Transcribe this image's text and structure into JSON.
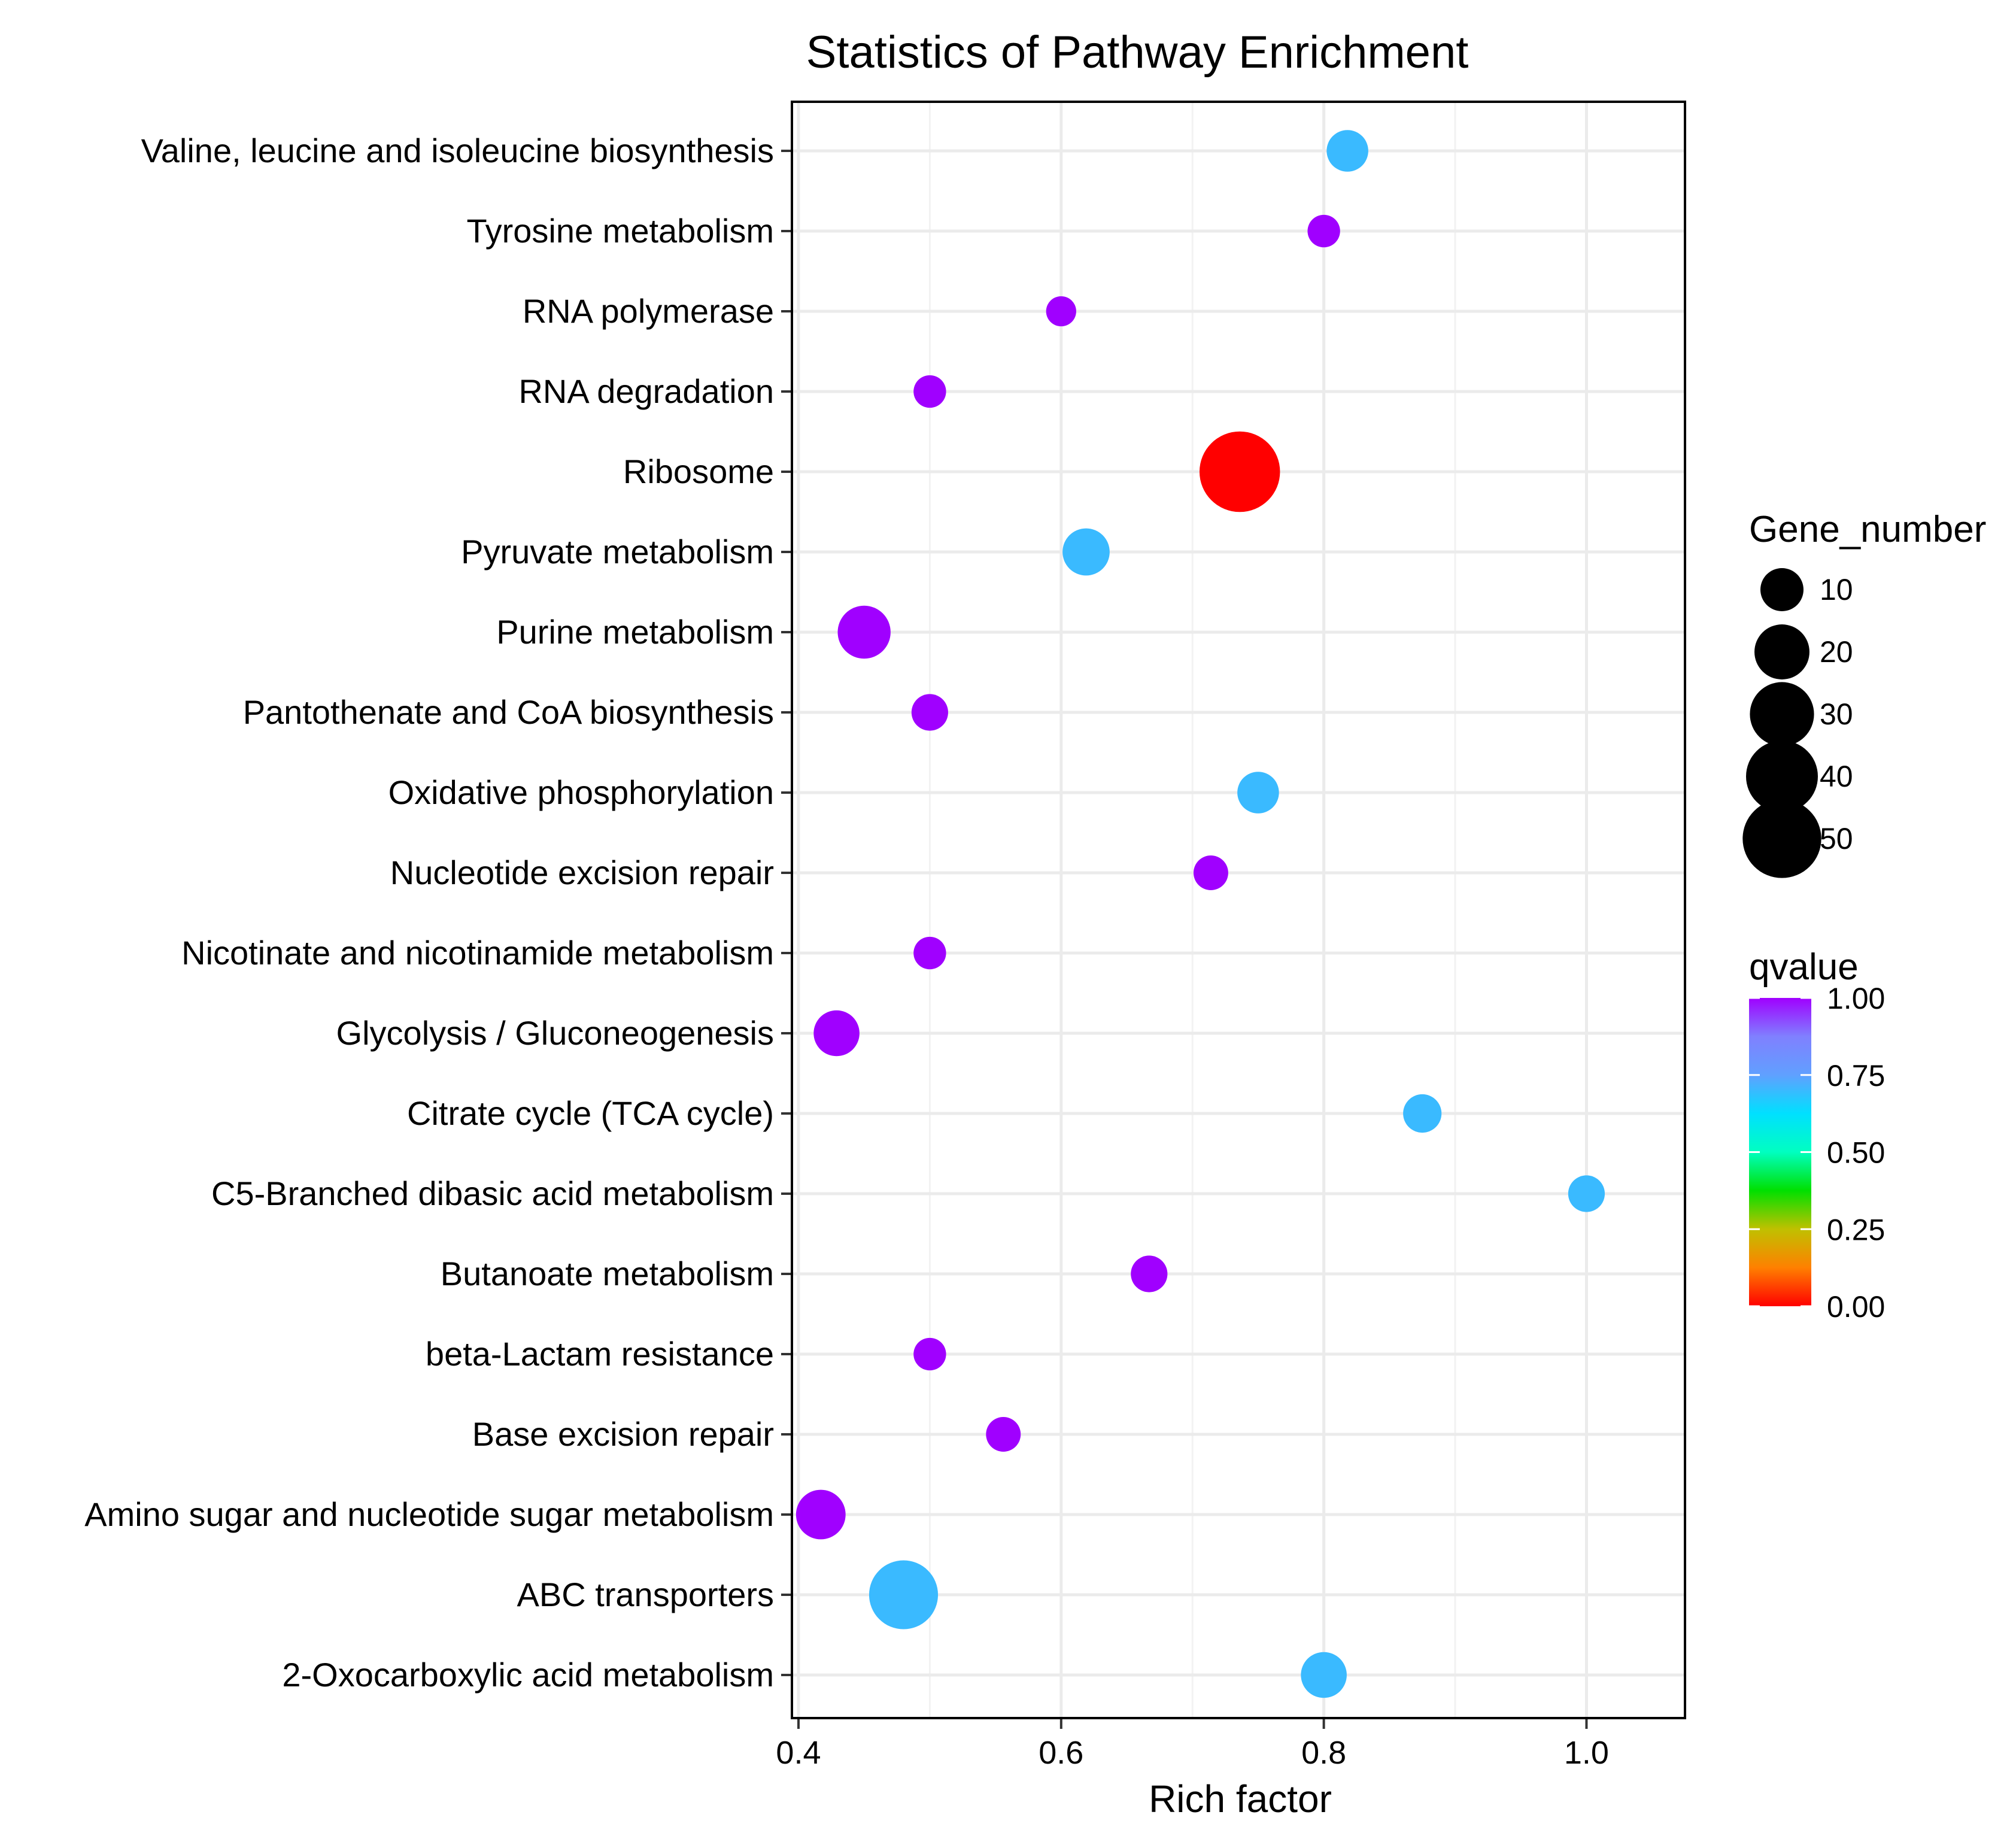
{
  "chart_data": {
    "type": "scatter",
    "title": "Statistics of Pathway Enrichment",
    "xlabel": "Rich factor",
    "ylabel": "",
    "xlim": [
      0.395,
      1.075
    ],
    "x_ticks": [
      0.4,
      0.6,
      0.8,
      1.0
    ],
    "x_tick_labels": [
      "0.4",
      "0.6",
      "0.8",
      "1.0"
    ],
    "grid": true,
    "categories": [
      "Valine, leucine and isoleucine biosynthesis",
      "Tyrosine metabolism",
      "RNA polymerase",
      "RNA degradation",
      "Ribosome",
      "Pyruvate metabolism",
      "Purine metabolism",
      "Pantothenate and CoA biosynthesis",
      "Oxidative phosphorylation",
      "Nucleotide excision repair",
      "Nicotinate and nicotinamide metabolism",
      "Glycolysis / Gluconeogenesis",
      "Citrate cycle (TCA cycle)",
      "C5-Branched dibasic acid metabolism",
      "Butanoate metabolism",
      "beta-Lactam resistance",
      "Base excision repair",
      "Amino sugar and nucleotide sugar metabolism",
      "ABC transporters",
      "2-Oxocarboxylic acid metabolism"
    ],
    "points": [
      {
        "category": "Valine, leucine and isoleucine biosynthesis",
        "rich_factor": 0.818,
        "gene_number": 9,
        "qvalue": 0.7
      },
      {
        "category": "Tyrosine metabolism",
        "rich_factor": 0.8,
        "gene_number": 4,
        "qvalue": 1.0
      },
      {
        "category": "RNA polymerase",
        "rich_factor": 0.6,
        "gene_number": 3,
        "qvalue": 1.0
      },
      {
        "category": "RNA degradation",
        "rich_factor": 0.5,
        "gene_number": 4,
        "qvalue": 1.0
      },
      {
        "category": "Ribosome",
        "rich_factor": 0.736,
        "gene_number": 53,
        "qvalue": 0.0
      },
      {
        "category": "Pyruvate metabolism",
        "rich_factor": 0.619,
        "gene_number": 13,
        "qvalue": 0.7
      },
      {
        "category": "Purine metabolism",
        "rich_factor": 0.45,
        "gene_number": 18,
        "qvalue": 1.0
      },
      {
        "category": "Pantothenate and CoA biosynthesis",
        "rich_factor": 0.5,
        "gene_number": 6,
        "qvalue": 1.0
      },
      {
        "category": "Oxidative phosphorylation",
        "rich_factor": 0.75,
        "gene_number": 9,
        "qvalue": 0.7
      },
      {
        "category": "Nucleotide excision repair",
        "rich_factor": 0.714,
        "gene_number": 5,
        "qvalue": 1.0
      },
      {
        "category": "Nicotinate and nicotinamide metabolism",
        "rich_factor": 0.5,
        "gene_number": 4,
        "qvalue": 1.0
      },
      {
        "category": "Glycolysis / Gluconeogenesis",
        "rich_factor": 0.429,
        "gene_number": 12,
        "qvalue": 1.0
      },
      {
        "category": "Citrate cycle (TCA cycle)",
        "rich_factor": 0.875,
        "gene_number": 7,
        "qvalue": 0.7
      },
      {
        "category": "C5-Branched dibasic acid metabolism",
        "rich_factor": 1.0,
        "gene_number": 6,
        "qvalue": 0.7
      },
      {
        "category": "Butanoate metabolism",
        "rich_factor": 0.667,
        "gene_number": 6,
        "qvalue": 1.0
      },
      {
        "category": "beta-Lactam resistance",
        "rich_factor": 0.5,
        "gene_number": 4,
        "qvalue": 1.0
      },
      {
        "category": "Base excision repair",
        "rich_factor": 0.556,
        "gene_number": 5,
        "qvalue": 1.0
      },
      {
        "category": "Amino sugar and nucleotide sugar metabolism",
        "rich_factor": 0.417,
        "gene_number": 15,
        "qvalue": 1.0
      },
      {
        "category": "ABC transporters",
        "rich_factor": 0.48,
        "gene_number": 36,
        "qvalue": 0.7
      },
      {
        "category": "2-Oxocarboxylic acid metabolism",
        "rich_factor": 0.8,
        "gene_number": 12,
        "qvalue": 0.7
      }
    ],
    "size_legend": {
      "title": "Gene_number",
      "values": [
        10,
        20,
        30,
        40,
        50
      ],
      "labels": [
        "10",
        "20",
        "30",
        "40",
        "50"
      ]
    },
    "color_legend": {
      "title": "qvalue",
      "ticks": [
        1.0,
        0.75,
        0.5,
        0.25,
        0.0
      ],
      "labels": [
        "1.00",
        "0.75",
        "0.50",
        "0.25",
        "0.00"
      ],
      "colors_low_to_high": [
        "#ff0000",
        "#ff8000",
        "#c0c000",
        "#00e000",
        "#00ffc0",
        "#00e0ff",
        "#60a0ff",
        "#8080ff",
        "#a000ff"
      ]
    },
    "legend_position": "right"
  },
  "colors": {
    "background": "#ffffff",
    "grid": "#ebebeb",
    "panel_border": "#000000",
    "tick": "#333333"
  }
}
